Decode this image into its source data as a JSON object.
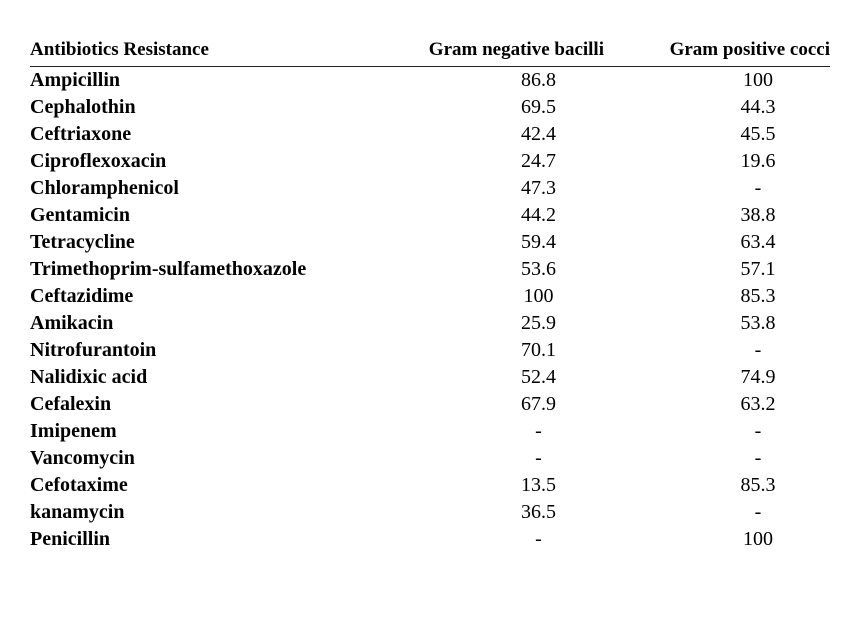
{
  "table": {
    "headers": [
      "Antibiotics Resistance",
      "Gram negative bacilli",
      "Gram positive cocci"
    ],
    "rows": [
      [
        "Ampicillin",
        "86.8",
        "100"
      ],
      [
        "Cephalothin",
        "69.5",
        "44.3"
      ],
      [
        "Ceftriaxone",
        "42.4",
        "45.5"
      ],
      [
        "Ciproflexoxacin",
        "24.7",
        "19.6"
      ],
      [
        "Chloramphenicol",
        "47.3",
        "-"
      ],
      [
        "Gentamicin",
        "44.2",
        "38.8"
      ],
      [
        "Tetracycline",
        "59.4",
        "63.4"
      ],
      [
        "Trimethoprim-sulfamethoxazole",
        "53.6",
        "57.1"
      ],
      [
        "Ceftazidime",
        "100",
        "85.3"
      ],
      [
        "Amikacin",
        "25.9",
        "53.8"
      ],
      [
        "Nitrofurantoin",
        "70.1",
        "-"
      ],
      [
        "Nalidixic acid",
        "52.4",
        "74.9"
      ],
      [
        "Cefalexin",
        "67.9",
        "63.2"
      ],
      [
        "Imipenem",
        "-",
        "-"
      ],
      [
        "Vancomycin",
        "-",
        "-"
      ],
      [
        "Cefotaxime",
        "13.5",
        "85.3"
      ],
      [
        "kanamycin",
        "36.5",
        "-"
      ],
      [
        "Penicillin",
        "-",
        "100"
      ]
    ]
  }
}
